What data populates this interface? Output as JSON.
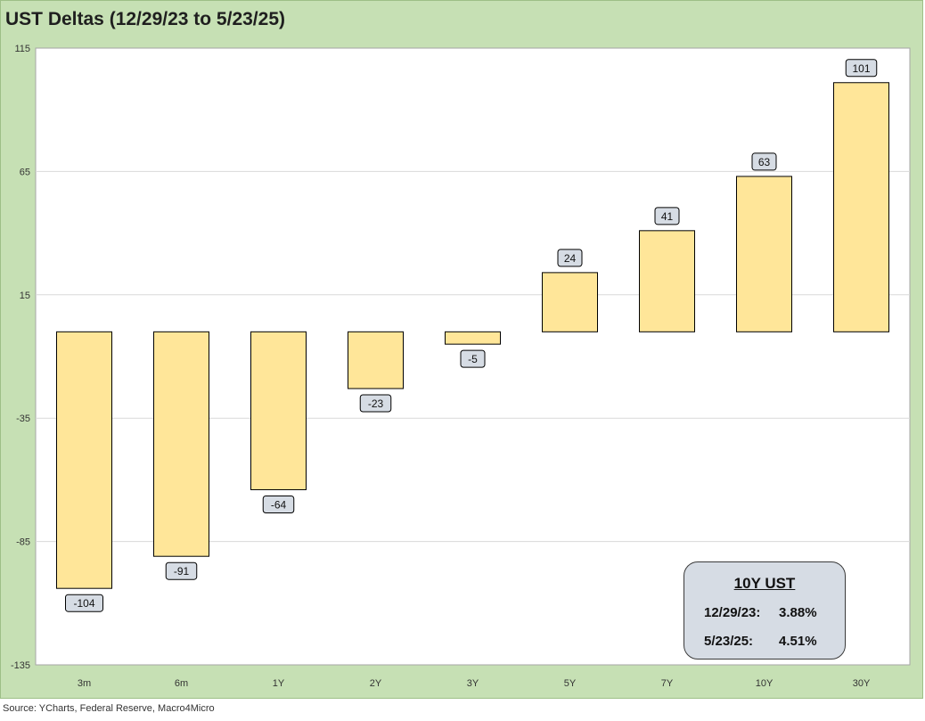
{
  "chart_data": {
    "type": "bar",
    "title": "UST Deltas (12/29/23 to 5/23/25)",
    "xlabel": "",
    "ylabel": "",
    "categories": [
      "3m",
      "6m",
      "1Y",
      "2Y",
      "3Y",
      "5Y",
      "7Y",
      "10Y",
      "30Y"
    ],
    "values": [
      -104,
      -91,
      -64,
      -23,
      -5,
      24,
      41,
      63,
      101
    ],
    "ylim": [
      -135,
      115
    ],
    "yticks": [
      115,
      65,
      15,
      -35,
      -85,
      -135
    ],
    "grid": true,
    "legend": "none",
    "colors": {
      "bar_fill": "#ffe699",
      "bar_stroke": "#000000",
      "label_fill": "#d6dce4",
      "plot_bg": "#ffffff",
      "frame_bg": "#c6e0b4",
      "grid": "#d9d9d9"
    }
  },
  "info_box": {
    "title": "10Y UST",
    "rows": [
      {
        "date": "12/29/23:",
        "value": "3.88%"
      },
      {
        "date": "5/23/25:",
        "value": "4.51%"
      }
    ]
  },
  "source": "Source: YCharts, Federal Reserve, Macro4Micro"
}
